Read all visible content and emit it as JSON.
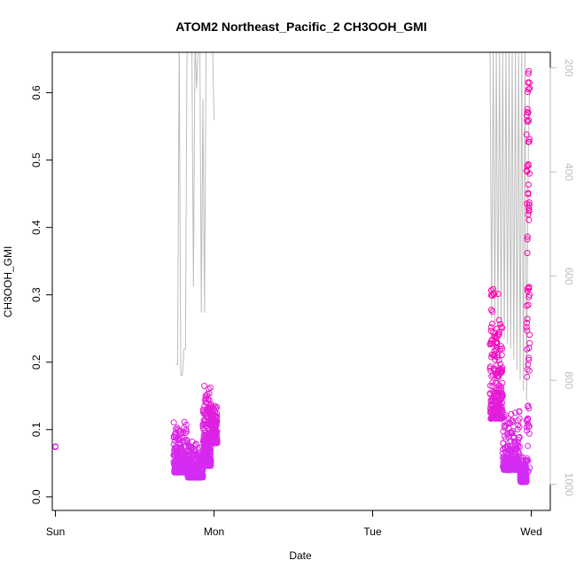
{
  "chart_data": {
    "type": "scatter",
    "title": "ATOM2 Northeast_Pacific_2 CH3OOH_GMI",
    "xlabel": "Date",
    "ylabel": "CH3OOH_GMI",
    "x_unit": "days since Sunday 00:00",
    "xlim": [
      -0.02,
      3.12
    ],
    "ylim": [
      -0.02,
      0.66
    ],
    "x_ticks": [
      {
        "value": 0,
        "label": "Sun"
      },
      {
        "value": 1,
        "label": "Mon"
      },
      {
        "value": 2,
        "label": "Tue"
      },
      {
        "value": 3,
        "label": "Wed"
      }
    ],
    "y_ticks": [
      0.0,
      0.1,
      0.2,
      0.3,
      0.4,
      0.5,
      0.6
    ],
    "y_tick_labels": [
      "0.0",
      "0.1",
      "0.2",
      "0.3",
      "0.4",
      "0.5",
      "0.6"
    ],
    "right_axis": {
      "label": "",
      "lim": [
        1050,
        170
      ],
      "ticks": [
        200,
        400,
        600,
        800,
        1000
      ],
      "tick_labels": [
        "200",
        "400",
        "600",
        "800",
        "1000"
      ],
      "color": "#bdbdbd"
    },
    "series": [
      {
        "color_low": "#cc33ff",
        "color_high": "#ff00aa",
        "marker": "open-circle",
        "segments": [
          {
            "x": [
              0.0,
              0.0
            ],
            "y": [
              0.074,
              0.075
            ]
          },
          {
            "x": [
              0.745,
              0.83
            ],
            "ys": [
              0.01,
              0.115
            ],
            "kind": "dense"
          },
          {
            "x": [
              0.83,
              0.93
            ],
            "ys": [
              0.01,
              0.085
            ],
            "kind": "dense"
          },
          {
            "x": [
              0.93,
              0.98
            ],
            "ys": [
              0.005,
              0.17
            ],
            "kind": "dense"
          },
          {
            "x": [
              0.98,
              1.02
            ],
            "ys": [
              0.06,
              0.14
            ],
            "kind": "dense"
          },
          {
            "x": [
              2.74,
              2.82
            ],
            "ys": [
              0.05,
              0.315
            ],
            "kind": "dense"
          },
          {
            "x": [
              2.82,
              2.93
            ],
            "ys": [
              0.01,
              0.13
            ],
            "kind": "dense"
          },
          {
            "x": [
              2.93,
              2.97
            ],
            "ys": [
              0.01,
              0.06
            ],
            "kind": "dense"
          },
          {
            "x": [
              2.97,
              2.99
            ],
            "ys": [
              0.03,
              0.635
            ],
            "kind": "sparse"
          }
        ]
      }
    ],
    "pressure_line": {
      "color": "#bdbdbd",
      "segments": [
        {
          "x": [
            0.76,
            0.77,
            0.78,
            0.79,
            0.8,
            0.81,
            0.82,
            0.83,
            0.85,
            0.86,
            0.87,
            0.88,
            0.89,
            0.9,
            0.91,
            0.92,
            0.93,
            0.94,
            0.95,
            0.96,
            0.97,
            0.98,
            0.99,
            1.0
          ],
          "p": [
            770,
            770,
            150,
            790,
            790,
            740,
            740,
            150,
            150,
            150,
            620,
            150,
            240,
            150,
            150,
            670,
            260,
            670,
            150,
            150,
            150,
            150,
            150,
            300
          ]
        },
        {
          "x": [
            2.74,
            2.75,
            2.76,
            2.77,
            2.78,
            2.79,
            2.8,
            2.81,
            2.82,
            2.83,
            2.84,
            2.85,
            2.86,
            2.87,
            2.88,
            2.89,
            2.9,
            2.91,
            2.92,
            2.93,
            2.94,
            2.95,
            2.96,
            2.97,
            2.98,
            2.99
          ],
          "p": [
            160,
            680,
            160,
            690,
            160,
            700,
            160,
            710,
            160,
            720,
            160,
            730,
            160,
            740,
            160,
            760,
            160,
            780,
            160,
            800,
            160,
            820,
            160,
            840,
            400,
            220
          ]
        }
      ]
    }
  }
}
